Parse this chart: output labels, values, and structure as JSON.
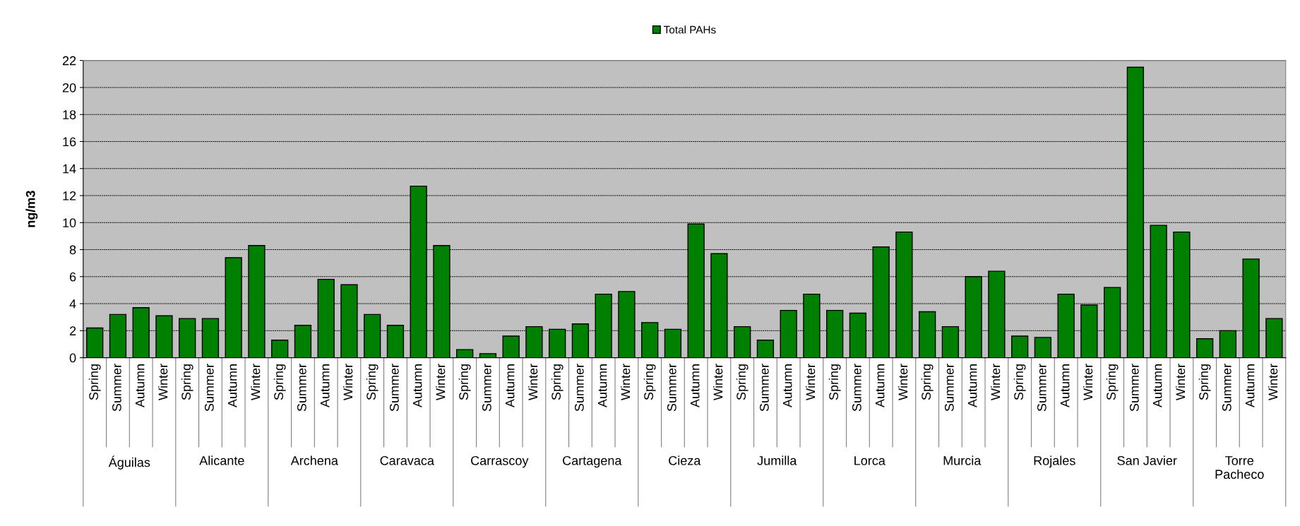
{
  "chart_data": {
    "type": "bar",
    "ylabel": "ng/m3",
    "categories": [
      "Spring",
      "Summer",
      "Autumn",
      "Winter",
      "Spring",
      "Summer",
      "Autumn",
      "Winter",
      "Spring",
      "Summer",
      "Autumn",
      "Winter",
      "Spring",
      "Summer",
      "Autumn",
      "Winter",
      "Spring",
      "Summer",
      "Autumn",
      "Winter",
      "Spring",
      "Summer",
      "Autumn",
      "Winter",
      "Spring",
      "Summer",
      "Autumn",
      "Winter",
      "Spring",
      "Summer",
      "Autumn",
      "Winter",
      "Spring",
      "Summer",
      "Autumn",
      "Winter",
      "Spring",
      "Summer",
      "Autumn",
      "Winter",
      "Spring",
      "Summer",
      "Autumn",
      "Winter",
      "Spring",
      "Summer",
      "Autumn",
      "Winter",
      "Spring",
      "Summer",
      "Autumn",
      "Winter"
    ],
    "series": [
      {
        "name": "Total PAHs",
        "color": "#008000",
        "values": [
          2.2,
          3.2,
          3.7,
          3.1,
          2.9,
          2.9,
          7.4,
          8.3,
          1.3,
          2.4,
          5.8,
          5.4,
          3.2,
          2.4,
          12.7,
          8.3,
          0.6,
          0.3,
          1.6,
          2.3,
          2.1,
          2.5,
          4.7,
          4.9,
          2.6,
          2.1,
          9.9,
          7.7,
          2.3,
          1.3,
          3.5,
          4.7,
          3.5,
          3.3,
          8.2,
          9.3,
          3.4,
          2.3,
          6.0,
          6.4,
          1.6,
          1.5,
          4.7,
          3.9,
          5.2,
          21.5,
          9.8,
          9.3,
          1.4,
          2.0,
          7.3,
          2.9
        ]
      }
    ],
    "annotations": [
      "Águilas",
      "Alicante",
      "Archena",
      "Caravaca",
      "Carrascoy",
      "Cartagena",
      "Cieza",
      "Jumilla",
      "Lorca",
      "Murcia",
      "Rojales",
      "San Javier",
      "Torre\nPacheco"
    ],
    "ylim": [
      0,
      22
    ],
    "yticks": [
      0,
      2,
      4,
      6,
      8,
      10,
      12,
      14,
      16,
      18,
      20,
      22
    ],
    "grid": "y",
    "legend": "top"
  }
}
